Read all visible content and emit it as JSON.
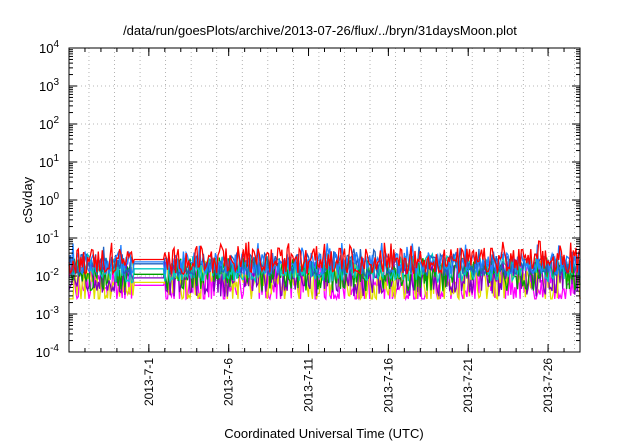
{
  "chart_data": {
    "type": "line",
    "title": "/data/run/goesPlots/archive/2013-07-26/flux/../bryn/31daysMoon.plot",
    "xlabel": "Coordinated Universal Time (UTC)",
    "ylabel": "cSv/day",
    "yscale": "log",
    "ylim": [
      0.0001,
      10000
    ],
    "xlim": [
      "2013-06-26",
      "2013-07-28"
    ],
    "grid": true,
    "legend": "none",
    "y_ticks": [
      {
        "base": "10",
        "exp": "-4",
        "value": 0.0001
      },
      {
        "base": "10",
        "exp": "-3",
        "value": 0.001
      },
      {
        "base": "10",
        "exp": "-2",
        "value": 0.01
      },
      {
        "base": "10",
        "exp": "-1",
        "value": 0.1
      },
      {
        "base": "10",
        "exp": "0",
        "value": 1
      },
      {
        "base": "10",
        "exp": "1",
        "value": 10
      },
      {
        "base": "10",
        "exp": "2",
        "value": 100
      },
      {
        "base": "10",
        "exp": "3",
        "value": 1000
      },
      {
        "base": "10",
        "exp": "4",
        "value": 10000
      }
    ],
    "x_ticks": [
      {
        "label": "2013-7-1",
        "date": "2013-07-01"
      },
      {
        "label": "2013-7-6",
        "date": "2013-07-06"
      },
      {
        "label": "2013-7-11",
        "date": "2013-07-11"
      },
      {
        "label": "2013-7-16",
        "date": "2013-07-16"
      },
      {
        "label": "2013-7-21",
        "date": "2013-07-21"
      },
      {
        "label": "2013-7-26",
        "date": "2013-07-26"
      }
    ],
    "gap": {
      "start": "2013-06-30",
      "end": "2013-07-02"
    },
    "series": [
      {
        "color": "#ff0000",
        "base": 0.025,
        "spread": 0.35,
        "spike": 0.085
      },
      {
        "color": "#2080ff",
        "base": 0.022,
        "spread": 0.3,
        "spike": 0.075
      },
      {
        "color": "#2060c0",
        "base": 0.02,
        "spread": 0.3,
        "spike": 0.06
      },
      {
        "color": "#00c8c0",
        "base": 0.015,
        "spread": 0.35,
        "spike": 0.04
      },
      {
        "color": "#00a000",
        "base": 0.011,
        "spread": 0.45,
        "spike": 0.02
      },
      {
        "color": "#8000c0",
        "base": 0.009,
        "spread": 0.5,
        "spike": 0.018
      },
      {
        "color": "#e0e000",
        "base": 0.007,
        "spread": 0.55,
        "spike": 0.015
      },
      {
        "color": "#ff00ff",
        "base": 0.006,
        "spread": 0.6,
        "spike": 0.015
      }
    ]
  }
}
